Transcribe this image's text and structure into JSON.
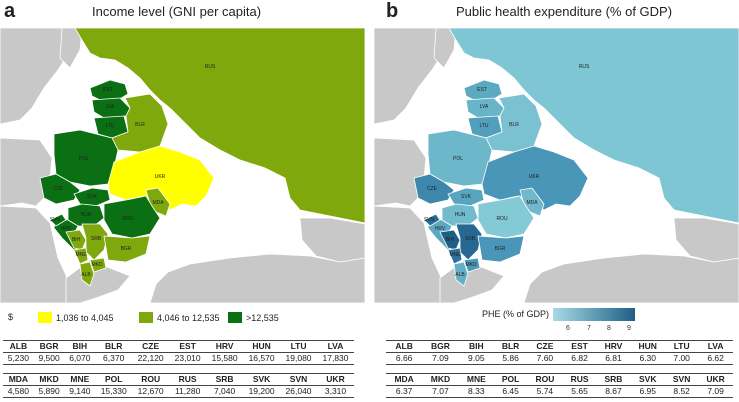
{
  "panel_a": {
    "letter": "a",
    "title": "Income level (GNI per capita)",
    "legend": {
      "currency": "$",
      "items": [
        {
          "label": "1,036 to 4,045",
          "color": "#ffff00"
        },
        {
          "label": "4,046 to 12,535",
          "color": "#7fa80d"
        },
        {
          "label": ">12,535",
          "color": "#0b6f14"
        }
      ]
    },
    "map_labels": [
      "RUS",
      "EST",
      "LVA",
      "LTU",
      "BLR",
      "POL",
      "UKR",
      "CZE",
      "SVK",
      "MDA",
      "HUN",
      "ROU",
      "HRV",
      "SVN",
      "BIH",
      "SRB",
      "BGR",
      "MNE",
      "MKD",
      "ALB"
    ],
    "table": {
      "row1": {
        "codes": [
          "ALB",
          "BGR",
          "BIH",
          "BLR",
          "CZE",
          "EST",
          "HRV",
          "HUN",
          "LTU",
          "LVA"
        ],
        "values": [
          "5,230",
          "9,500",
          "6,070",
          "6,370",
          "22,120",
          "23,010",
          "15,580",
          "16,570",
          "19,080",
          "17,830"
        ]
      },
      "row2": {
        "codes": [
          "MDA",
          "MKD",
          "MNE",
          "POL",
          "ROU",
          "RUS",
          "SRB",
          "SVK",
          "SVN",
          "UKR"
        ],
        "values": [
          "4,580",
          "5,890",
          "9,140",
          "15,330",
          "12,670",
          "11,280",
          "7,040",
          "19,200",
          "26,040",
          "3,310"
        ]
      }
    }
  },
  "panel_b": {
    "letter": "b",
    "title": "Public health expenditure (% of GDP)",
    "legend": {
      "title": "PHE (% of GDP)",
      "ticks": [
        "6",
        "7",
        "8",
        "9"
      ],
      "colors": [
        "#a7dbe5",
        "#1e5f86"
      ]
    },
    "map_labels": [
      "RUS",
      "EST",
      "LVA",
      "LTU",
      "BLR",
      "POL",
      "UKR",
      "CZE",
      "SVK",
      "MDA",
      "HUN",
      "ROU",
      "HRV",
      "SVN",
      "BIH",
      "SRB",
      "BGR",
      "MNE",
      "MKD",
      "ALB"
    ],
    "table": {
      "row1": {
        "codes": [
          "ALB",
          "BGR",
          "BIH",
          "BLR",
          "CZE",
          "EST",
          "HRV",
          "HUN",
          "LTU",
          "LVA"
        ],
        "values": [
          "6.66",
          "7.09",
          "9.05",
          "5.86",
          "7.60",
          "6.82",
          "6.81",
          "6.30",
          "7.00",
          "6.62"
        ]
      },
      "row2": {
        "codes": [
          "MDA",
          "MKD",
          "MNE",
          "POL",
          "ROU",
          "RUS",
          "SRB",
          "SVK",
          "SVN",
          "UKR"
        ],
        "values": [
          "6.37",
          "7.07",
          "8.33",
          "6.45",
          "5.74",
          "5.65",
          "8.67",
          "6.95",
          "8.52",
          "7.09"
        ]
      }
    }
  },
  "colors": {
    "land": "#c8c8c8",
    "sea": "#ffffff",
    "border": "#ffffff"
  }
}
